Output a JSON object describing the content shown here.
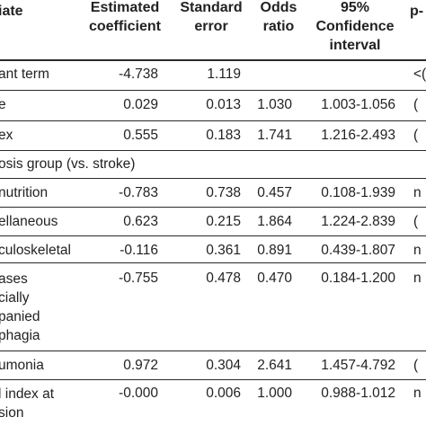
{
  "table": {
    "headers": {
      "variable": "iate",
      "estimated_coefficient": [
        "Estimated",
        "coefficient"
      ],
      "standard_error": [
        "Standard",
        "error"
      ],
      "odds_ratio": [
        "Odds",
        "ratio"
      ],
      "confidence_interval": [
        "95%",
        "Confidence",
        "interval"
      ],
      "p_value": "p-"
    },
    "rows": [
      {
        "variable": "ant term",
        "coefficient": "-4.738",
        "se": "1.119",
        "or": "",
        "ci": "",
        "p": "<("
      },
      {
        "variable": "e",
        "coefficient": "0.029",
        "se": "0.013",
        "or": "1.030",
        "ci": "1.003-1.056",
        "p": "("
      },
      {
        "variable": "ex",
        "coefficient": "0.555",
        "se": "0.183",
        "or": "1.741",
        "ci": "1.216-2.493",
        "p": "("
      },
      {
        "variable": "osis group (vs. stroke)",
        "coefficient": "",
        "se": "",
        "or": "",
        "ci": "",
        "p": ""
      },
      {
        "variable": "nutrition",
        "coefficient": "-0.783",
        "se": "0.738",
        "or": "0.457",
        "ci": "0.108-1.939",
        "p": "n"
      },
      {
        "variable": "ellaneous",
        "coefficient": "0.623",
        "se": "0.215",
        "or": "1.864",
        "ci": "1.224-2.839",
        "p": "("
      },
      {
        "variable": "culoskeletal",
        "coefficient": "-0.116",
        "se": "0.361",
        "or": "0.891",
        "ci": "0.439-1.807",
        "p": "n"
      },
      {
        "variable": "ases\ncially\npanied\nphagia",
        "coefficient": "-0.755",
        "se": "0.478",
        "or": "0.470",
        "ci": "0.184-1.200",
        "p": "n"
      },
      {
        "variable": "umonia",
        "coefficient": "0.972",
        "se": "0.304",
        "or": "2.641",
        "ci": "1.457-4.792",
        "p": "("
      },
      {
        "variable": "l index at\nsion",
        "coefficient": "-0.000",
        "se": "0.006",
        "or": "1.000",
        "ci": "0.988-1.012",
        "p": "n"
      }
    ]
  }
}
